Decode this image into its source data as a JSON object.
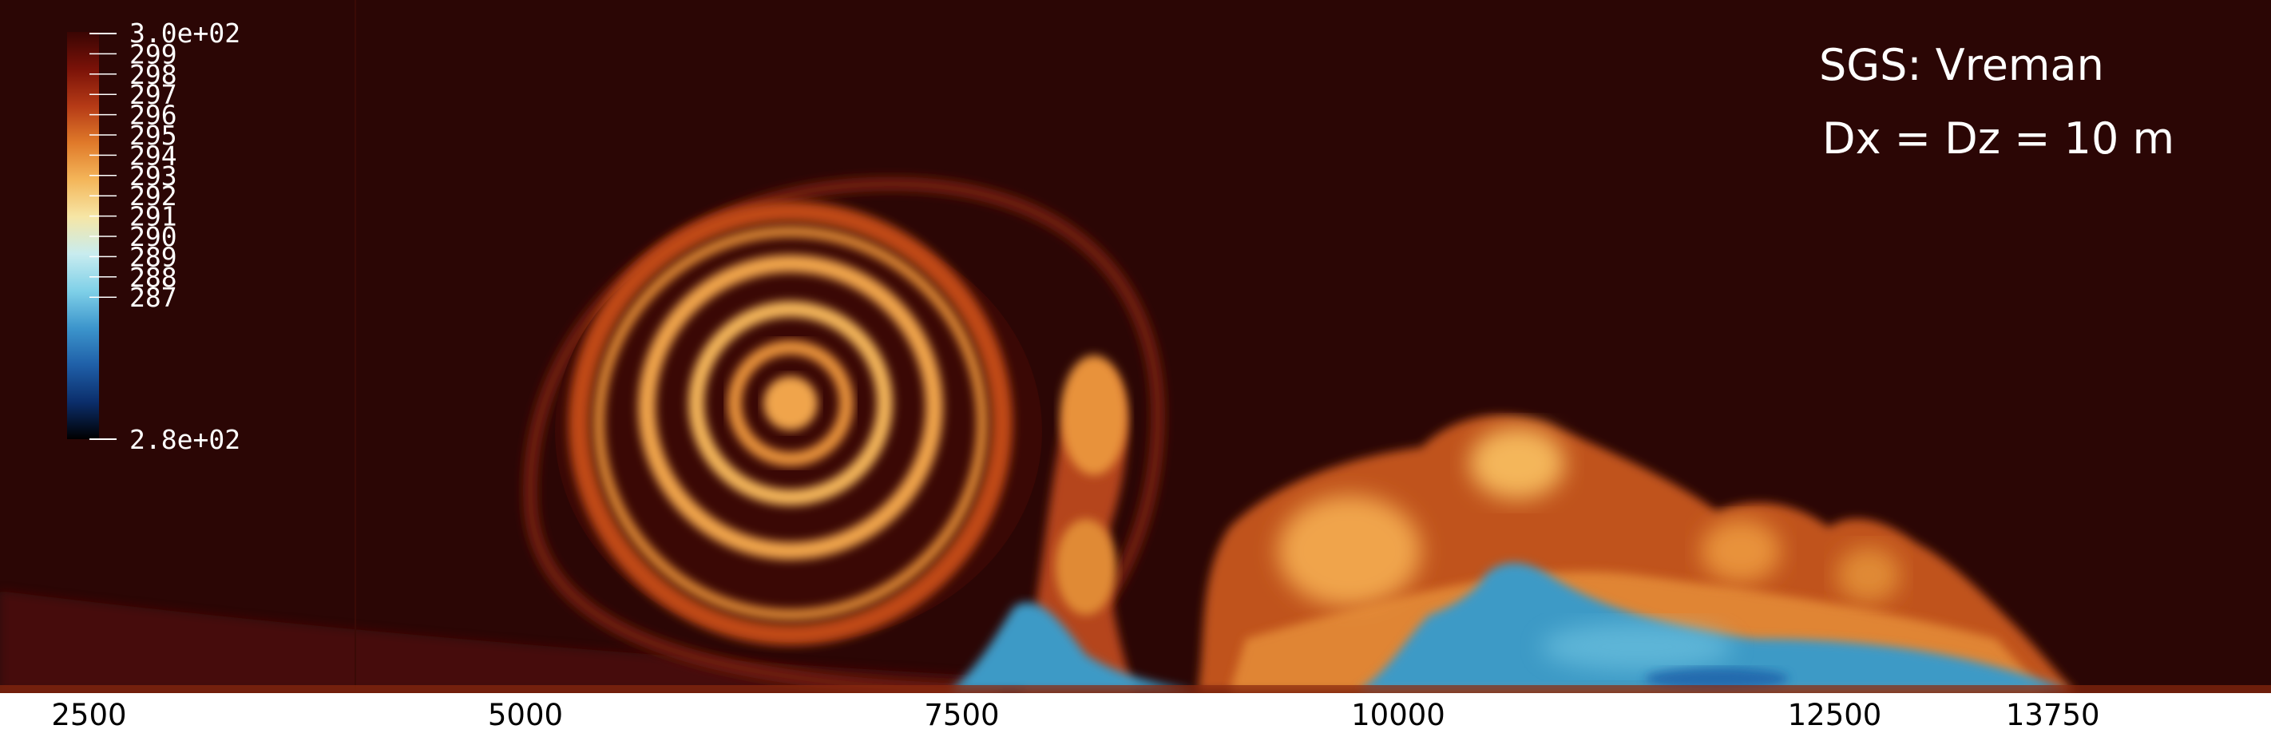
{
  "chart_data": {
    "type": "heatmap",
    "title": "",
    "xlabel": "",
    "ylabel": "",
    "xlim": [
      1990,
      15000
    ],
    "x_ticks": [
      2500,
      5000,
      7500,
      10000,
      12500,
      13750
    ],
    "x_tick_labels": [
      "2500",
      "5000",
      "7500",
      "10000",
      "12500",
      "13750"
    ],
    "colorbar": {
      "min": 280,
      "max": 300,
      "min_label": "2.8e+02",
      "max_label": "3.0e+02",
      "ticks": [
        299,
        298,
        297,
        296,
        295,
        294,
        293,
        292,
        291,
        290,
        289,
        288,
        287
      ],
      "tick_labels": [
        "299",
        "298",
        "297",
        "296",
        "295",
        "294",
        "293",
        "292",
        "291",
        "290",
        "289",
        "288",
        "287"
      ],
      "colormap": [
        "#000000",
        "#0b2e6b",
        "#1f5fa8",
        "#3c95cc",
        "#7fd0e8",
        "#c8ecef",
        "#f6e6a6",
        "#f4b65a",
        "#e07a2a",
        "#b53a16",
        "#7a1208",
        "#3a0503"
      ]
    },
    "annotations": [
      "SGS: Vreman",
      "Dx = Dz = 10 m"
    ]
  },
  "colors": {
    "background_field": "#2b0605",
    "warm_band": "#d97a28",
    "hot_band": "#f0a44c",
    "cold_current": "#3e9ac6"
  }
}
